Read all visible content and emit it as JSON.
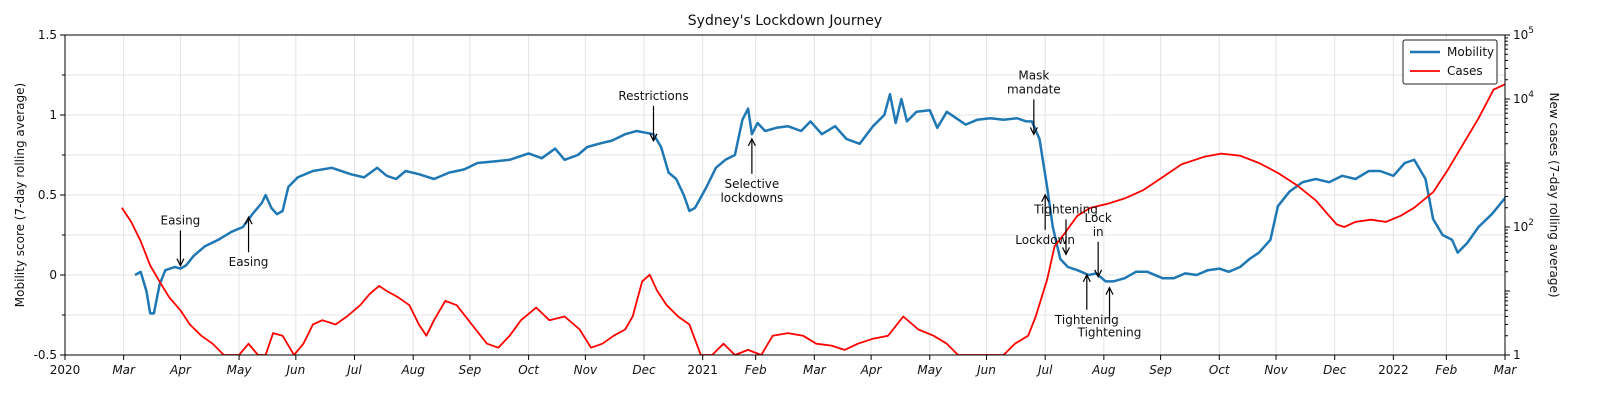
{
  "chart_data": {
    "type": "line",
    "title": "Sydney's Lockdown Journey",
    "ylabel": "Mobility score (7-day rolling average)",
    "y2label": "New cases (7-day rolling average)",
    "ylim": [
      -0.5,
      1.5
    ],
    "y2lim_log": [
      1,
      100000
    ],
    "y2_scale": "log",
    "xlim": [
      "2020-03-01",
      "2022-04-01"
    ],
    "grid": true,
    "legend_position": "top-right",
    "y_ticks": [
      "-0.5",
      "0",
      "0.5",
      "1",
      "1.5"
    ],
    "y2_ticks": [
      {
        "base": "1",
        "exp": ""
      },
      {
        "base": "10",
        "exp": "2"
      },
      {
        "base": "10",
        "exp": "4"
      },
      {
        "base": "10",
        "exp": "5"
      }
    ],
    "x_ticks": [
      "2020",
      "Mar",
      "Apr",
      "May",
      "Jun",
      "Jul",
      "Aug",
      "Sep",
      "Oct",
      "Nov",
      "Dec",
      "2021",
      "Feb",
      "Mar",
      "Apr",
      "May",
      "Jun",
      "Jul",
      "Aug",
      "Sep",
      "Oct",
      "Nov",
      "Dec",
      "2022",
      "Feb",
      "Mar",
      "Apr"
    ],
    "series": [
      {
        "name": "Mobility",
        "color": "#1f77b4",
        "axis": "left",
        "points": [
          [
            "2020-04-07",
            0.0
          ],
          [
            "2020-04-10",
            0.02
          ],
          [
            "2020-04-13",
            -0.1
          ],
          [
            "2020-04-15",
            -0.24
          ],
          [
            "2020-04-17",
            -0.24
          ],
          [
            "2020-04-20",
            -0.06
          ],
          [
            "2020-04-23",
            0.03
          ],
          [
            "2020-04-28",
            0.05
          ],
          [
            "2020-05-01",
            0.04
          ],
          [
            "2020-05-04",
            0.06
          ],
          [
            "2020-05-08",
            0.12
          ],
          [
            "2020-05-14",
            0.18
          ],
          [
            "2020-05-21",
            0.22
          ],
          [
            "2020-05-28",
            0.27
          ],
          [
            "2020-06-03",
            0.3
          ],
          [
            "2020-06-08",
            0.38
          ],
          [
            "2020-06-13",
            0.45
          ],
          [
            "2020-06-15",
            0.5
          ],
          [
            "2020-06-18",
            0.42
          ],
          [
            "2020-06-21",
            0.38
          ],
          [
            "2020-06-24",
            0.4
          ],
          [
            "2020-06-27",
            0.55
          ],
          [
            "2020-07-02",
            0.61
          ],
          [
            "2020-07-10",
            0.65
          ],
          [
            "2020-07-20",
            0.67
          ],
          [
            "2020-07-30",
            0.63
          ],
          [
            "2020-08-06",
            0.61
          ],
          [
            "2020-08-13",
            0.67
          ],
          [
            "2020-08-18",
            0.62
          ],
          [
            "2020-08-23",
            0.6
          ],
          [
            "2020-08-28",
            0.65
          ],
          [
            "2020-09-04",
            0.63
          ],
          [
            "2020-09-12",
            0.6
          ],
          [
            "2020-09-20",
            0.64
          ],
          [
            "2020-09-28",
            0.66
          ],
          [
            "2020-10-05",
            0.7
          ],
          [
            "2020-10-14",
            0.71
          ],
          [
            "2020-10-22",
            0.72
          ],
          [
            "2020-11-01",
            0.76
          ],
          [
            "2020-11-08",
            0.73
          ],
          [
            "2020-11-15",
            0.79
          ],
          [
            "2020-11-20",
            0.72
          ],
          [
            "2020-11-27",
            0.75
          ],
          [
            "2020-12-02",
            0.8
          ],
          [
            "2020-12-08",
            0.82
          ],
          [
            "2020-12-15",
            0.84
          ],
          [
            "2020-12-22",
            0.88
          ],
          [
            "2020-12-28",
            0.9
          ],
          [
            "2021-01-06",
            0.88
          ],
          [
            "2021-01-10",
            0.8
          ],
          [
            "2021-01-14",
            0.64
          ],
          [
            "2021-01-18",
            0.6
          ],
          [
            "2021-01-22",
            0.5
          ],
          [
            "2021-01-25",
            0.4
          ],
          [
            "2021-01-28",
            0.42
          ],
          [
            "2021-02-03",
            0.55
          ],
          [
            "2021-02-08",
            0.67
          ],
          [
            "2021-02-13",
            0.72
          ],
          [
            "2021-02-18",
            0.75
          ],
          [
            "2021-02-22",
            0.97
          ],
          [
            "2021-02-25",
            1.04
          ],
          [
            "2021-02-27",
            0.88
          ],
          [
            "2021-03-02",
            0.95
          ],
          [
            "2021-03-06",
            0.9
          ],
          [
            "2021-03-12",
            0.92
          ],
          [
            "2021-03-18",
            0.93
          ],
          [
            "2021-03-25",
            0.9
          ],
          [
            "2021-03-30",
            0.96
          ],
          [
            "2021-04-05",
            0.88
          ],
          [
            "2021-04-12",
            0.93
          ],
          [
            "2021-04-18",
            0.85
          ],
          [
            "2021-04-25",
            0.82
          ],
          [
            "2021-05-02",
            0.93
          ],
          [
            "2021-05-08",
            1.0
          ],
          [
            "2021-05-11",
            1.13
          ],
          [
            "2021-05-14",
            0.95
          ],
          [
            "2021-05-17",
            1.1
          ],
          [
            "2021-05-20",
            0.96
          ],
          [
            "2021-05-25",
            1.02
          ],
          [
            "2021-06-01",
            1.03
          ],
          [
            "2021-06-05",
            0.92
          ],
          [
            "2021-06-10",
            1.02
          ],
          [
            "2021-06-15",
            0.98
          ],
          [
            "2021-06-20",
            0.94
          ],
          [
            "2021-06-26",
            0.97
          ],
          [
            "2021-07-03",
            0.98
          ],
          [
            "2021-07-10",
            0.97
          ],
          [
            "2021-07-17",
            0.98
          ],
          [
            "2021-07-22",
            0.96
          ],
          [
            "2021-07-25",
            0.96
          ],
          [
            "2021-07-29",
            0.85
          ],
          [
            "2021-08-02",
            0.55
          ],
          [
            "2021-08-05",
            0.3
          ],
          [
            "2021-08-09",
            0.1
          ],
          [
            "2021-08-13",
            0.05
          ],
          [
            "2021-08-18",
            0.03
          ],
          [
            "2021-08-24",
            0.0
          ],
          [
            "2021-08-28",
            0.01
          ],
          [
            "2021-09-02",
            -0.04
          ],
          [
            "2021-09-06",
            -0.04
          ],
          [
            "2021-09-12",
            -0.02
          ],
          [
            "2021-09-18",
            0.02
          ],
          [
            "2021-09-24",
            0.02
          ],
          [
            "2021-10-02",
            -0.02
          ],
          [
            "2021-10-08",
            -0.02
          ],
          [
            "2021-10-14",
            0.01
          ],
          [
            "2021-10-20",
            0.0
          ],
          [
            "2021-10-26",
            0.03
          ],
          [
            "2021-11-01",
            0.04
          ],
          [
            "2021-11-06",
            0.02
          ],
          [
            "2021-11-12",
            0.05
          ],
          [
            "2021-11-17",
            0.1
          ],
          [
            "2021-11-22",
            0.14
          ],
          [
            "2021-11-28",
            0.22
          ],
          [
            "2021-12-02",
            0.43
          ],
          [
            "2021-12-08",
            0.52
          ],
          [
            "2021-12-15",
            0.58
          ],
          [
            "2021-12-22",
            0.6
          ],
          [
            "2021-12-29",
            0.58
          ],
          [
            "2022-01-05",
            0.62
          ],
          [
            "2022-01-12",
            0.6
          ],
          [
            "2022-01-19",
            0.65
          ],
          [
            "2022-01-25",
            0.65
          ],
          [
            "2022-02-01",
            0.62
          ],
          [
            "2022-02-07",
            0.7
          ],
          [
            "2022-02-12",
            0.72
          ],
          [
            "2022-02-18",
            0.6
          ],
          [
            "2022-02-22",
            0.35
          ],
          [
            "2022-02-27",
            0.25
          ],
          [
            "2022-03-04",
            0.22
          ],
          [
            "2022-03-07",
            0.14
          ],
          [
            "2022-03-12",
            0.2
          ],
          [
            "2022-03-18",
            0.3
          ],
          [
            "2022-03-25",
            0.38
          ],
          [
            "2022-04-01",
            0.48
          ],
          [
            "2022-04-04",
            0.55
          ],
          [
            "2022-04-07",
            0.46
          ],
          [
            "2022-04-12",
            0.52
          ],
          [
            "2022-04-18",
            0.55
          ],
          [
            "2022-04-25",
            0.58
          ],
          [
            "2022-05-01",
            0.6
          ]
        ]
      },
      {
        "name": "Cases",
        "color": "#ff0000",
        "axis": "right",
        "points": [
          [
            "2020-03-31",
            200
          ],
          [
            "2020-04-05",
            120
          ],
          [
            "2020-04-10",
            60
          ],
          [
            "2020-04-15",
            25
          ],
          [
            "2020-04-20",
            14
          ],
          [
            "2020-04-25",
            8
          ],
          [
            "2020-05-01",
            5
          ],
          [
            "2020-05-06",
            3
          ],
          [
            "2020-05-12",
            2
          ],
          [
            "2020-05-18",
            1.5
          ],
          [
            "2020-05-24",
            1
          ],
          [
            "2020-06-01",
            1
          ],
          [
            "2020-06-06",
            1.5
          ],
          [
            "2020-06-11",
            1
          ],
          [
            "2020-06-15",
            1
          ],
          [
            "2020-06-19",
            2.2
          ],
          [
            "2020-06-24",
            2.0
          ],
          [
            "2020-06-30",
            1
          ],
          [
            "2020-07-05",
            1.5
          ],
          [
            "2020-07-10",
            3
          ],
          [
            "2020-07-15",
            3.5
          ],
          [
            "2020-07-22",
            3
          ],
          [
            "2020-07-28",
            4
          ],
          [
            "2020-08-04",
            6
          ],
          [
            "2020-08-09",
            9
          ],
          [
            "2020-08-14",
            12
          ],
          [
            "2020-08-18",
            10
          ],
          [
            "2020-08-24",
            8
          ],
          [
            "2020-08-30",
            6
          ],
          [
            "2020-09-04",
            3
          ],
          [
            "2020-09-08",
            2
          ],
          [
            "2020-09-12",
            3.5
          ],
          [
            "2020-09-18",
            7
          ],
          [
            "2020-09-24",
            6
          ],
          [
            "2020-10-02",
            3
          ],
          [
            "2020-10-10",
            1.5
          ],
          [
            "2020-10-16",
            1.3
          ],
          [
            "2020-10-22",
            2
          ],
          [
            "2020-10-28",
            3.5
          ],
          [
            "2020-11-05",
            5.5
          ],
          [
            "2020-11-12",
            3.5
          ],
          [
            "2020-11-20",
            4
          ],
          [
            "2020-11-28",
            2.5
          ],
          [
            "2020-12-04",
            1.3
          ],
          [
            "2020-12-10",
            1.5
          ],
          [
            "2020-12-16",
            2
          ],
          [
            "2020-12-22",
            2.5
          ],
          [
            "2020-12-26",
            4
          ],
          [
            "2020-12-31",
            14
          ],
          [
            "2021-01-04",
            18
          ],
          [
            "2021-01-08",
            10
          ],
          [
            "2021-01-13",
            6
          ],
          [
            "2021-01-19",
            4
          ],
          [
            "2021-01-25",
            3
          ],
          [
            "2021-01-31",
            1
          ],
          [
            "2021-02-06",
            1
          ],
          [
            "2021-02-12",
            1.5
          ],
          [
            "2021-02-18",
            1
          ],
          [
            "2021-02-25",
            1.2
          ],
          [
            "2021-03-04",
            1
          ],
          [
            "2021-03-10",
            2
          ],
          [
            "2021-03-18",
            2.2
          ],
          [
            "2021-03-26",
            2.0
          ],
          [
            "2021-04-02",
            1.5
          ],
          [
            "2021-04-10",
            1.4
          ],
          [
            "2021-04-17",
            1.2
          ],
          [
            "2021-04-24",
            1.5
          ],
          [
            "2021-05-02",
            1.8
          ],
          [
            "2021-05-10",
            2
          ],
          [
            "2021-05-18",
            4
          ],
          [
            "2021-05-26",
            2.5
          ],
          [
            "2021-06-03",
            2
          ],
          [
            "2021-06-10",
            1.5
          ],
          [
            "2021-06-16",
            1
          ],
          [
            "2021-06-24",
            1
          ],
          [
            "2021-07-01",
            1
          ],
          [
            "2021-07-10",
            1
          ],
          [
            "2021-07-16",
            1.5
          ],
          [
            "2021-07-23",
            2
          ],
          [
            "2021-07-27",
            4
          ],
          [
            "2021-08-02",
            15
          ],
          [
            "2021-08-06",
            50
          ],
          [
            "2021-08-12",
            85
          ],
          [
            "2021-08-18",
            150
          ],
          [
            "2021-08-25",
            200
          ],
          [
            "2021-09-03",
            230
          ],
          [
            "2021-09-12",
            280
          ],
          [
            "2021-09-22",
            380
          ],
          [
            "2021-10-02",
            600
          ],
          [
            "2021-10-12",
            950
          ],
          [
            "2021-10-24",
            1250
          ],
          [
            "2021-11-02",
            1400
          ],
          [
            "2021-11-12",
            1300
          ],
          [
            "2021-11-22",
            1000
          ],
          [
            "2021-12-02",
            700
          ],
          [
            "2021-12-12",
            450
          ],
          [
            "2021-12-22",
            260
          ],
          [
            "2021-12-29",
            150
          ],
          [
            "2022-01-02",
            110
          ],
          [
            "2022-01-06",
            100
          ],
          [
            "2022-01-12",
            120
          ],
          [
            "2022-01-20",
            130
          ],
          [
            "2022-01-28",
            120
          ],
          [
            "2022-02-05",
            150
          ],
          [
            "2022-02-12",
            200
          ],
          [
            "2022-02-22",
            350
          ],
          [
            "2022-03-02",
            800
          ],
          [
            "2022-03-10",
            2000
          ],
          [
            "2022-03-18",
            5000
          ],
          [
            "2022-03-26",
            14000
          ],
          [
            "2022-04-01",
            17000
          ],
          [
            "2022-04-06",
            15000
          ],
          [
            "2022-04-12",
            11000
          ],
          [
            "2022-04-20",
            9000
          ],
          [
            "2022-04-28",
            7500
          ],
          [
            "2022-05-03",
            6000
          ]
        ]
      }
    ],
    "annotations": [
      {
        "label": "Easing",
        "date": "2020-05-01",
        "value": 0.04,
        "side": "above"
      },
      {
        "label": "Easing",
        "date": "2020-06-06",
        "value": 0.38,
        "side": "below"
      },
      {
        "label": "Restrictions",
        "date": "2021-01-06",
        "value": 0.82,
        "side": "above"
      },
      {
        "label": "Selective lockdowns",
        "date": "2021-02-27",
        "value": 0.87,
        "side": "below"
      },
      {
        "label": "Mask mandate",
        "date": "2021-07-26",
        "value": 0.86,
        "side": "above"
      },
      {
        "label": "Lockdown",
        "date": "2021-08-01",
        "value": 0.52,
        "side": "below"
      },
      {
        "label": "Tightening",
        "date": "2021-08-12",
        "value": 0.11,
        "side": "above"
      },
      {
        "label": "Tightening",
        "date": "2021-08-23",
        "value": 0.02,
        "side": "below"
      },
      {
        "label": "Lock in",
        "date": "2021-08-29",
        "value": -0.03,
        "side": "above"
      },
      {
        "label": "Tightening",
        "date": "2021-09-04",
        "value": -0.06,
        "side": "below"
      }
    ]
  }
}
